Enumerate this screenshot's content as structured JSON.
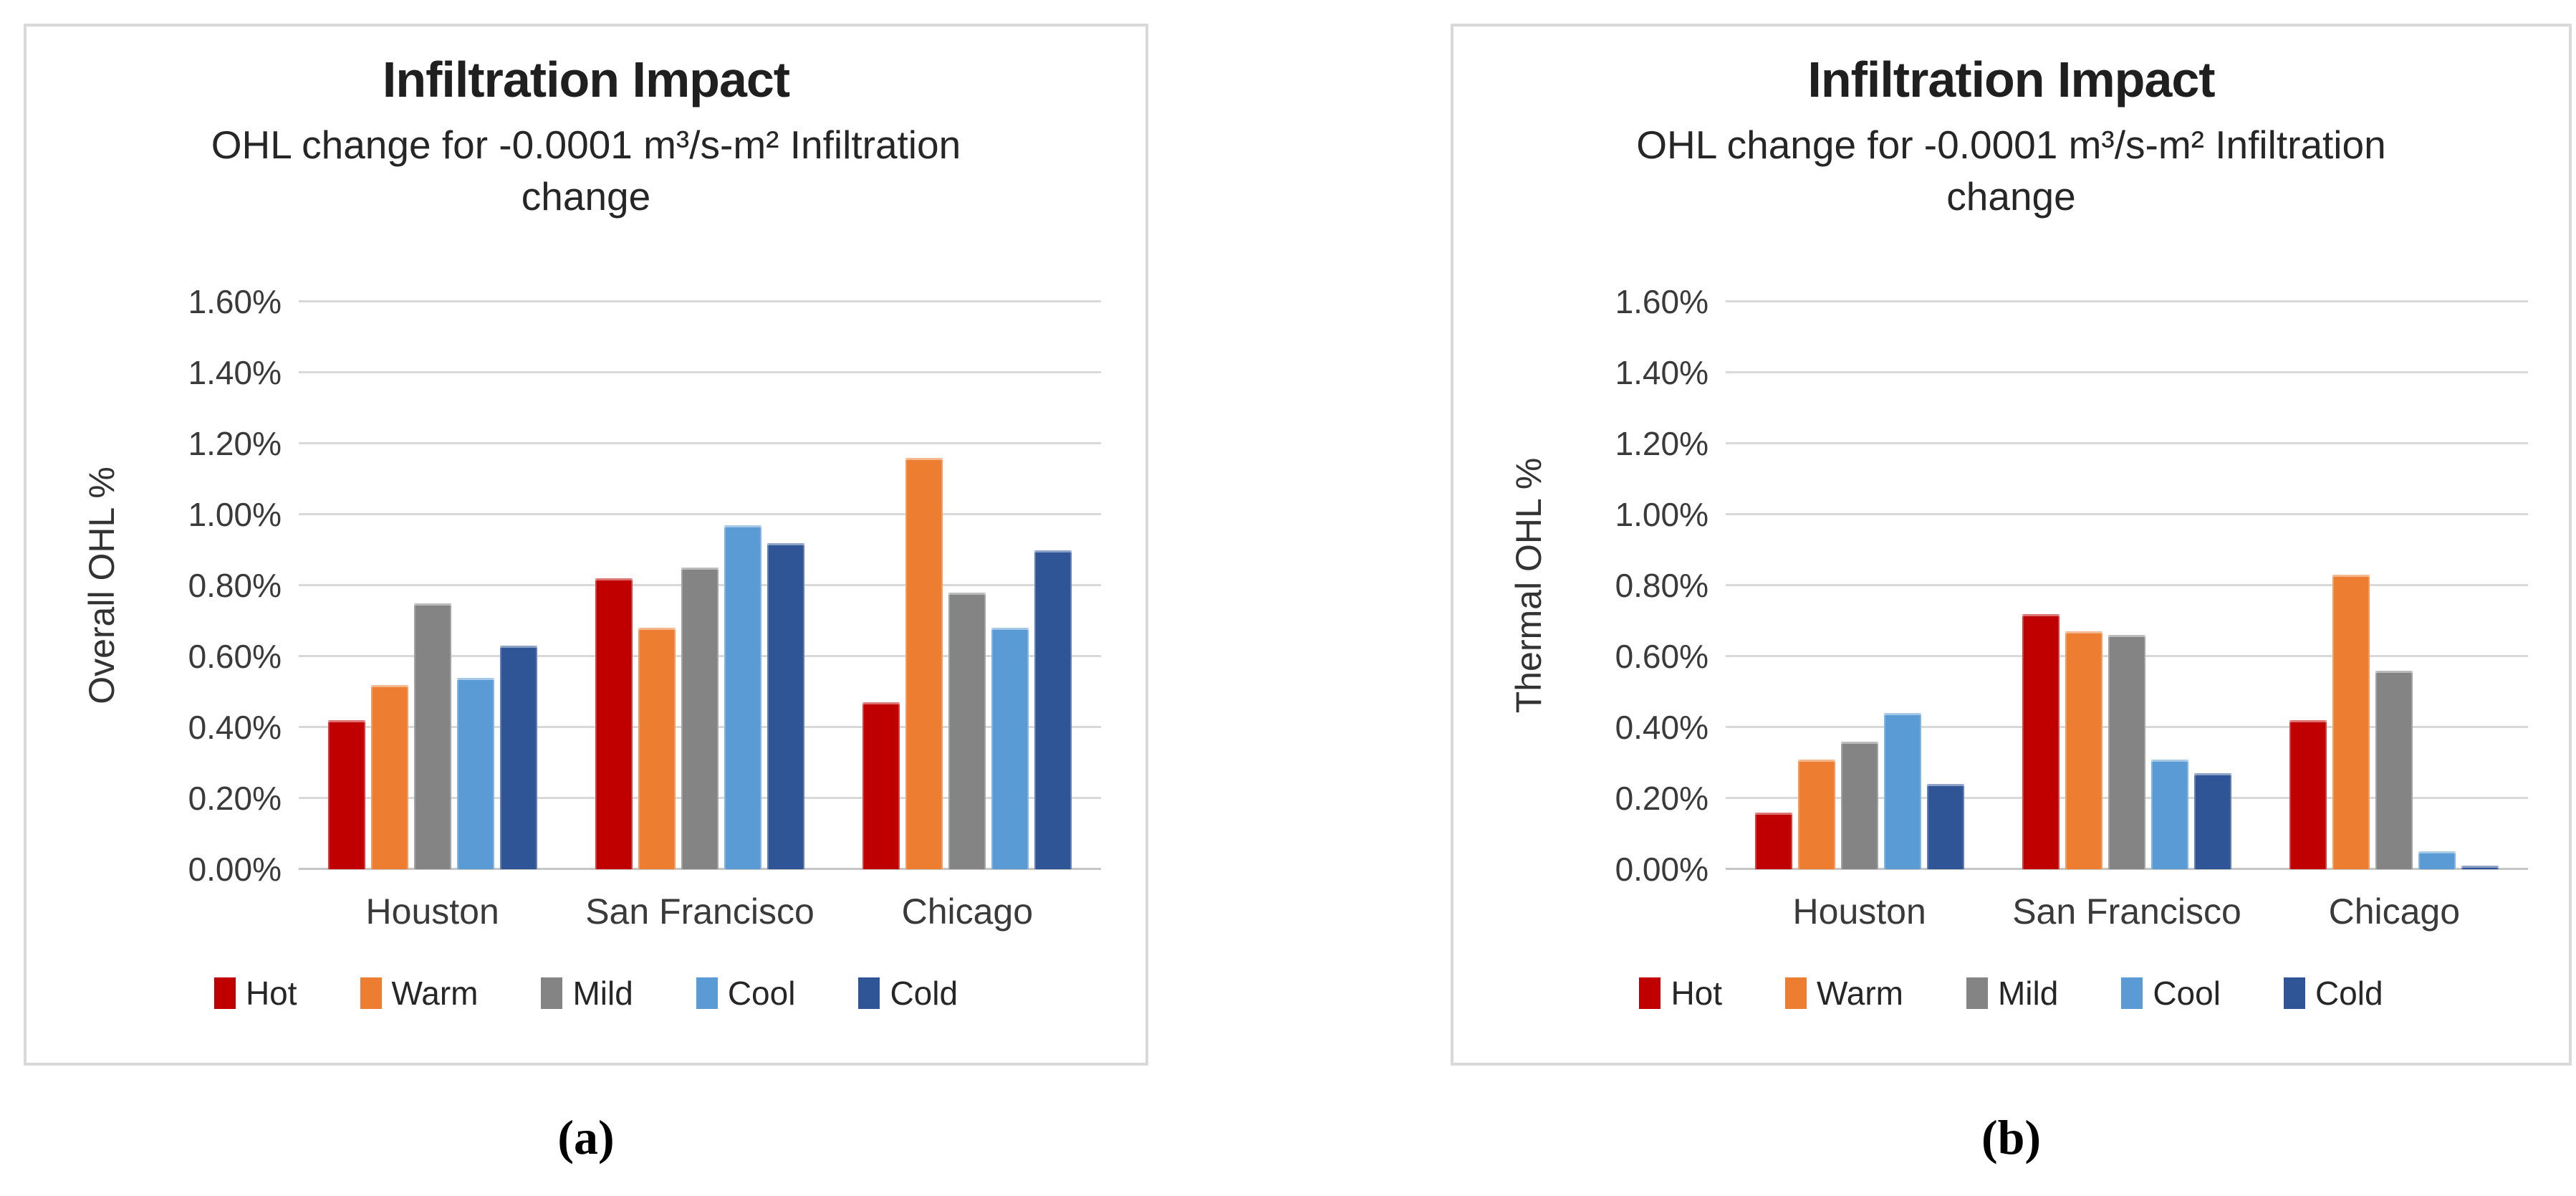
{
  "panels": [
    {
      "caption": "(a)"
    },
    {
      "caption": "(b)"
    }
  ],
  "chart_data": [
    {
      "type": "bar",
      "title": "Infiltration Impact",
      "subtitle": "OHL change for -0.0001 m³/s-m² Infiltration change",
      "ylabel": "Overall OHL %",
      "xlabel": "",
      "categories": [
        "Houston",
        "San Francisco",
        "Chicago"
      ],
      "series": [
        {
          "name": "Hot",
          "color": "#C00000",
          "values": [
            0.42,
            0.82,
            0.47
          ]
        },
        {
          "name": "Warm",
          "color": "#ED7D31",
          "values": [
            0.52,
            0.68,
            1.16
          ]
        },
        {
          "name": "Mild",
          "color": "#848484",
          "values": [
            0.75,
            0.85,
            0.78
          ]
        },
        {
          "name": "Cool",
          "color": "#5B9BD5",
          "values": [
            0.54,
            0.97,
            0.68
          ]
        },
        {
          "name": "Cold",
          "color": "#2F5597",
          "values": [
            0.63,
            0.92,
            0.9
          ]
        }
      ],
      "ylim": [
        0,
        1.6
      ],
      "ytick_step": 0.2,
      "ytick_labels": [
        "0.00%",
        "0.20%",
        "0.40%",
        "0.60%",
        "0.80%",
        "1.00%",
        "1.20%",
        "1.40%",
        "1.60%"
      ],
      "unit": "%",
      "grid": true,
      "legend_position": "bottom"
    },
    {
      "type": "bar",
      "title": "Infiltration Impact",
      "subtitle": "OHL change for -0.0001 m³/s-m² Infiltration change",
      "ylabel": "Thermal OHL %",
      "xlabel": "",
      "categories": [
        "Houston",
        "San Francisco",
        "Chicago"
      ],
      "series": [
        {
          "name": "Hot",
          "color": "#C00000",
          "values": [
            0.16,
            0.72,
            0.42
          ]
        },
        {
          "name": "Warm",
          "color": "#ED7D31",
          "values": [
            0.31,
            0.67,
            0.83
          ]
        },
        {
          "name": "Mild",
          "color": "#848484",
          "values": [
            0.36,
            0.66,
            0.56
          ]
        },
        {
          "name": "Cool",
          "color": "#5B9BD5",
          "values": [
            0.44,
            0.31,
            0.05
          ]
        },
        {
          "name": "Cold",
          "color": "#2F5597",
          "values": [
            0.24,
            0.27,
            0.01
          ]
        }
      ],
      "ylim": [
        0,
        1.6
      ],
      "ytick_step": 0.2,
      "ytick_labels": [
        "0.00%",
        "0.20%",
        "0.40%",
        "0.60%",
        "0.80%",
        "1.00%",
        "1.20%",
        "1.40%",
        "1.60%"
      ],
      "unit": "%",
      "grid": true,
      "legend_position": "bottom"
    }
  ]
}
